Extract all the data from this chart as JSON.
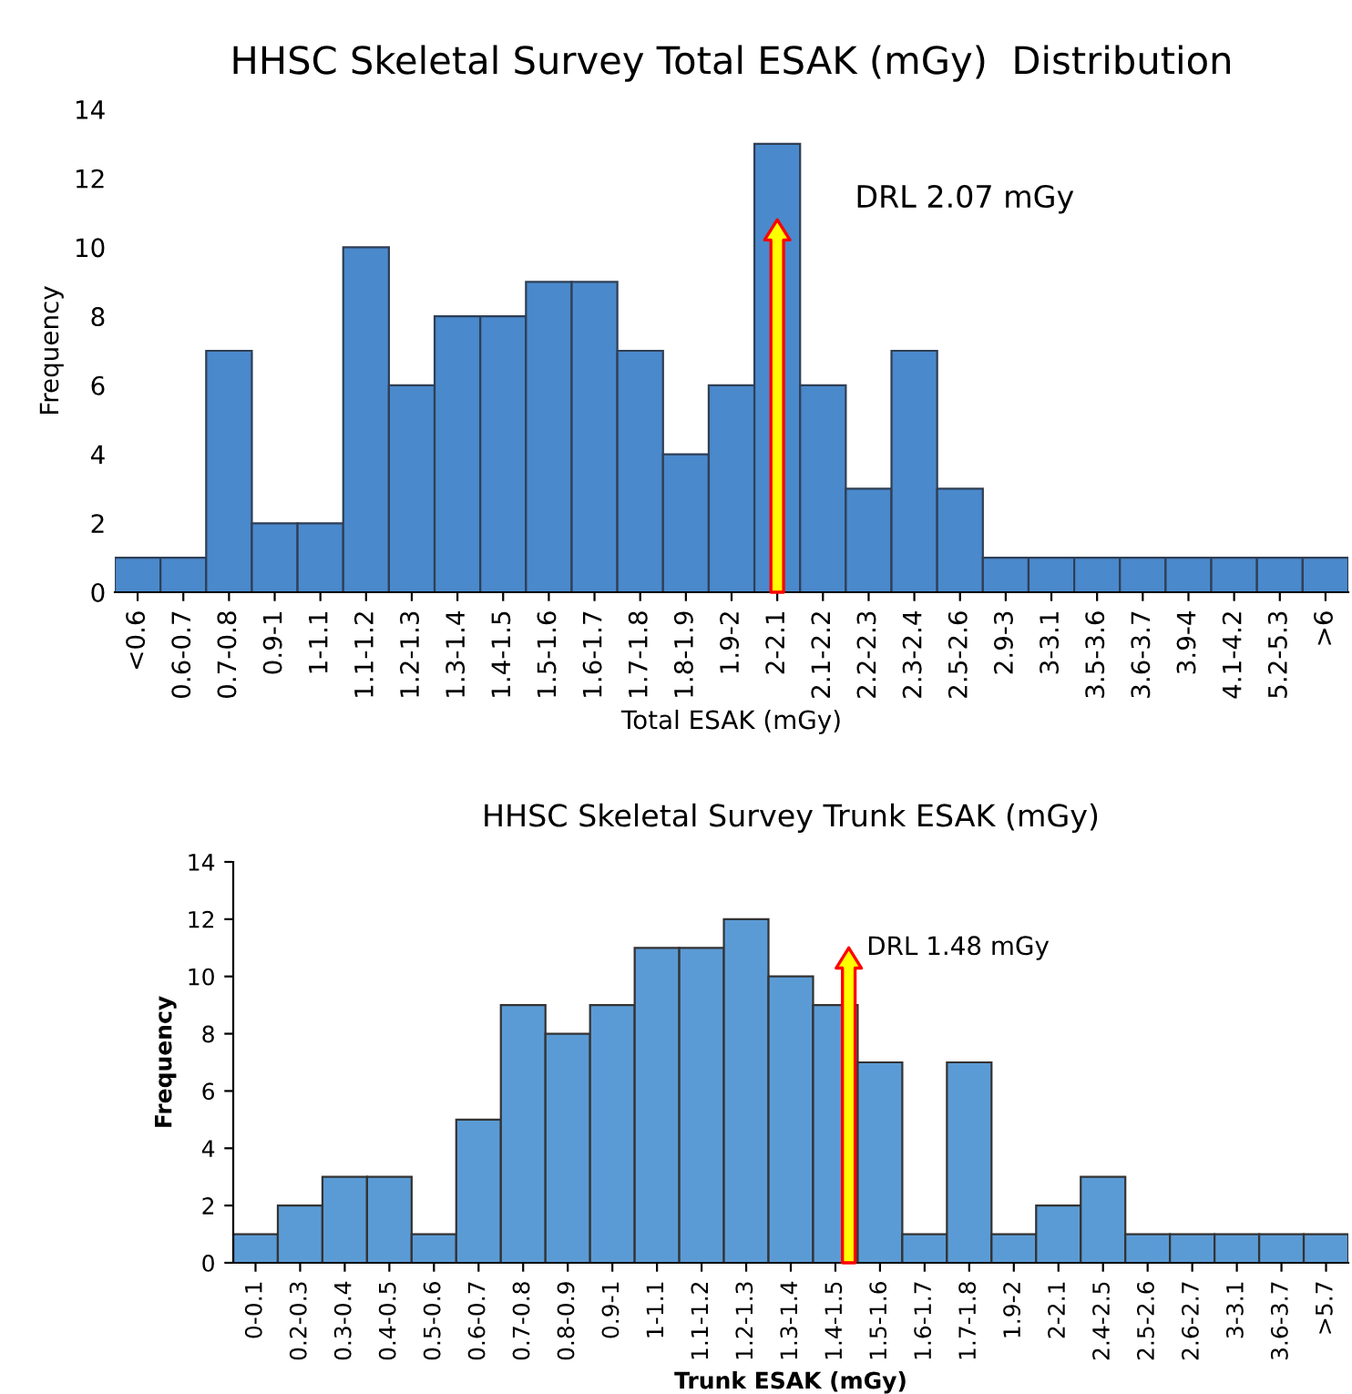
{
  "chart_data": [
    {
      "type": "bar",
      "title": "HHSC Skeletal Survey Total ESAK (mGy)  Distribution",
      "xlabel": "Total ESAK (mGy)",
      "ylabel": "Frequency",
      "categories": [
        "<0.6",
        "0.6-0.7",
        "0.7-0.8",
        "0.9-1",
        "1-1.1",
        "1.1-1.2",
        "1.2-1.3",
        "1.3-1.4",
        "1.4-1.5",
        "1.5-1.6",
        "1.6-1.7",
        "1.7-1.8",
        "1.8-1.9",
        "1.9-2",
        "2-2.1",
        "2.1-2.2",
        "2.2-2.3",
        "2.3-2.4",
        "2.5-2.6",
        "2.9-3",
        "3-3.1",
        "3.5-3.6",
        "3.6-3.7",
        "3.9-4",
        "4.1-4.2",
        "5.2-5.3",
        ">6"
      ],
      "values": [
        1,
        1,
        7,
        2,
        2,
        10,
        6,
        8,
        8,
        9,
        9,
        7,
        4,
        6,
        13,
        6,
        3,
        7,
        3,
        1,
        1,
        1,
        1,
        1,
        1,
        1,
        1
      ],
      "color": "#4a89cc",
      "ylim": [
        0,
        14
      ],
      "yticks": [
        0,
        2,
        4,
        6,
        8,
        10,
        12,
        14
      ],
      "grid": false,
      "legend": false,
      "annotations": [
        "DRL 2.07 mGy"
      ]
    },
    {
      "type": "bar",
      "title": "HHSC Skeletal Survey Trunk ESAK (mGy)",
      "xlabel": "Trunk ESAK (mGy)",
      "ylabel": "Frequency",
      "categories": [
        "0-0.1",
        "0.2-0.3",
        "0.3-0.4",
        "0.4-0.5",
        "0.5-0.6",
        "0.6-0.7",
        "0.7-0.8",
        "0.8-0.9",
        "0.9-1",
        "1-1.1",
        "1.1-1.2",
        "1.2-1.3",
        "1.3-1.4",
        "1.4-1.5",
        "1.5-1.6",
        "1.6-1.7",
        "1.7-1.8",
        "1.9-2",
        "2-2.1",
        "2.4-2.5",
        "2.5-2.6",
        "2.6-2.7",
        "3-3.1",
        "3.6-3.7",
        ">5.7"
      ],
      "values": [
        1,
        2,
        3,
        3,
        1,
        5,
        9,
        8,
        9,
        11,
        11,
        12,
        10,
        9,
        7,
        1,
        7,
        1,
        2,
        3,
        1,
        1,
        1,
        1,
        1
      ],
      "color": "#5b9bd5",
      "ylim": [
        0,
        14
      ],
      "yticks": [
        0,
        2,
        4,
        6,
        8,
        10,
        12,
        14
      ],
      "grid": false,
      "legend": false,
      "annotations": [
        "DRL 1.48 mGy"
      ]
    }
  ]
}
